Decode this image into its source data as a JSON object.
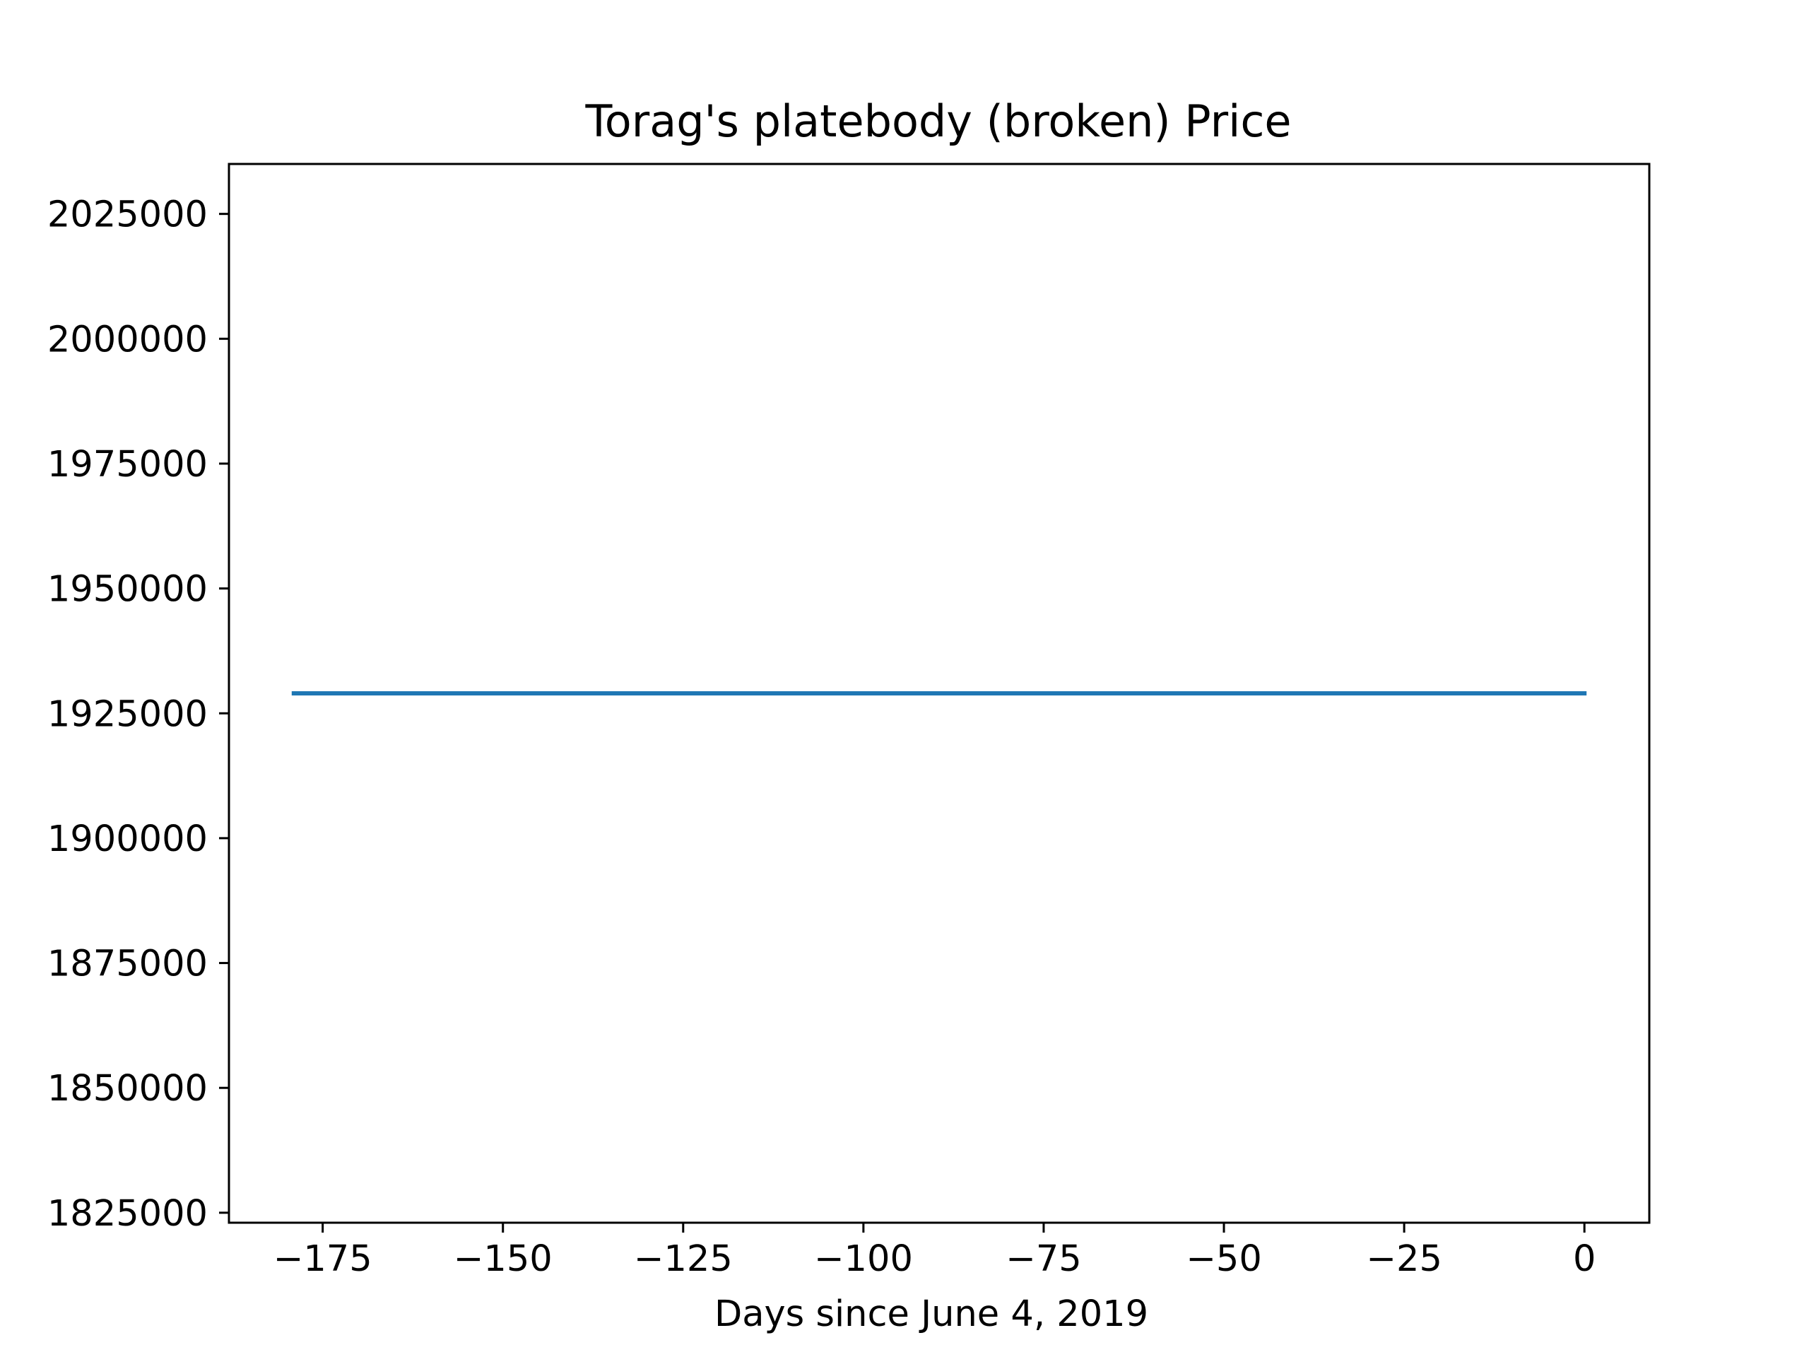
{
  "chart_data": {
    "type": "line",
    "title": "Torag's platebody (broken) Price",
    "xlabel": "Days since June 4, 2019",
    "ylabel": "",
    "xlim": [
      -188,
      9
    ],
    "ylim": [
      1823000,
      2035000
    ],
    "x_ticks": [
      -175,
      -150,
      -125,
      -100,
      -75,
      -50,
      -25,
      0
    ],
    "x_tick_labels": [
      "−175",
      "−150",
      "−125",
      "−100",
      "−75",
      "−50",
      "−25",
      "0"
    ],
    "y_ticks": [
      1825000,
      1850000,
      1875000,
      1900000,
      1925000,
      1950000,
      1975000,
      2000000,
      2025000
    ],
    "y_tick_labels": [
      "1825000",
      "1850000",
      "1875000",
      "1900000",
      "1925000",
      "1950000",
      "1975000",
      "2000000",
      "2025000"
    ],
    "grid": false,
    "series": [
      {
        "color": "#1f77b4",
        "x": [
          -179,
          0
        ],
        "y": [
          1929000,
          1929000
        ]
      }
    ]
  }
}
